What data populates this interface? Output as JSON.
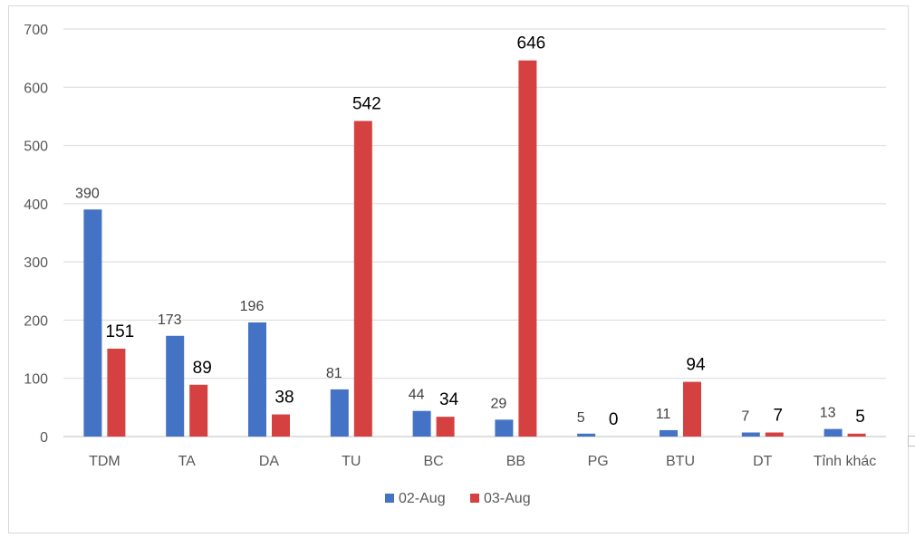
{
  "chart_data": {
    "type": "bar",
    "categories": [
      "TDM",
      "TA",
      "DA",
      "TU",
      "BC",
      "BB",
      "PG",
      "BTU",
      "DT",
      "Tỉnh khác"
    ],
    "series": [
      {
        "name": "02-Aug",
        "color": "#4472c4",
        "values": [
          390,
          173,
          196,
          81,
          44,
          29,
          5,
          11,
          7,
          13
        ]
      },
      {
        "name": "03-Aug",
        "color": "#d44140",
        "values": [
          151,
          89,
          38,
          542,
          34,
          646,
          0,
          94,
          7,
          5
        ]
      }
    ],
    "yticks": [
      0,
      100,
      200,
      300,
      400,
      500,
      600,
      700
    ],
    "ylim": [
      0,
      700
    ],
    "grid": true,
    "legend_position": "bottom",
    "title": "",
    "xlabel": "",
    "ylabel": ""
  }
}
